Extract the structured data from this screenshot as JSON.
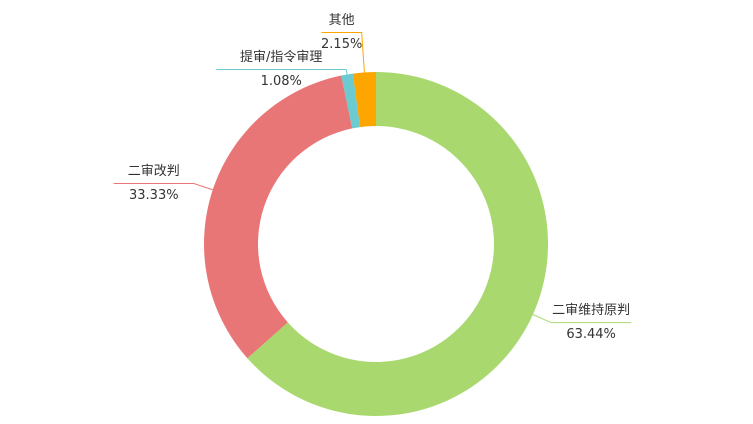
{
  "chart_data": {
    "type": "donut",
    "categories": [
      "二审维持原判",
      "二审改判",
      "提审/指令审理",
      "其他"
    ],
    "values": [
      63.44,
      33.33,
      1.08,
      2.15
    ],
    "value_labels": [
      "63.44%",
      "33.33%",
      "1.08%",
      "2.15%"
    ],
    "colors": [
      "#a9d86e",
      "#e87676",
      "#6ccbd0",
      "#ffa500"
    ]
  }
}
